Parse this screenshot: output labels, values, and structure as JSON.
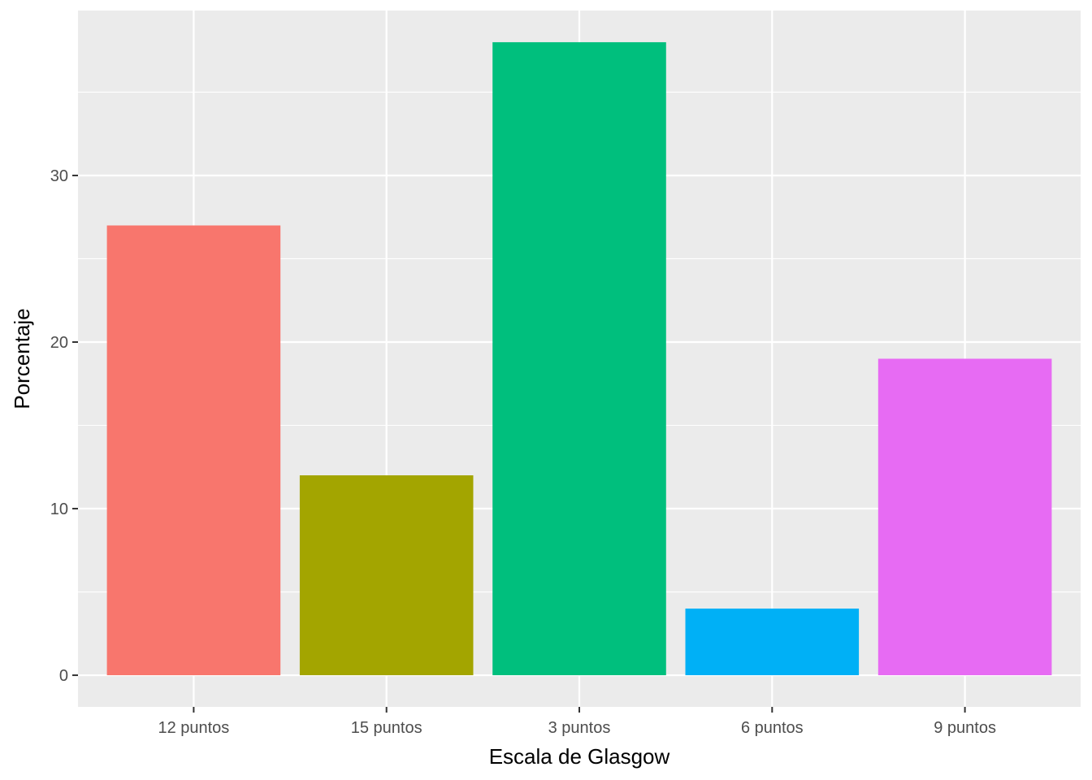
{
  "chart_data": {
    "type": "bar",
    "title": "",
    "xlabel": "Escala de Glasgow",
    "ylabel": "Porcentaje",
    "categories": [
      "12 puntos",
      "15 puntos",
      "3 puntos",
      "6 puntos",
      "9 puntos"
    ],
    "values": [
      27,
      12,
      38,
      4,
      19
    ],
    "colors": [
      "#F8766D",
      "#A3A500",
      "#00BF7D",
      "#00B0F6",
      "#E76BF3"
    ],
    "yticks": [
      0,
      10,
      20,
      30
    ],
    "ylim": [
      -1.9,
      39.9
    ],
    "grid": true,
    "legend": "none",
    "panel_background": "#EBEBEB",
    "gridline_color": "#FFFFFF",
    "tick_color": "#333333"
  }
}
